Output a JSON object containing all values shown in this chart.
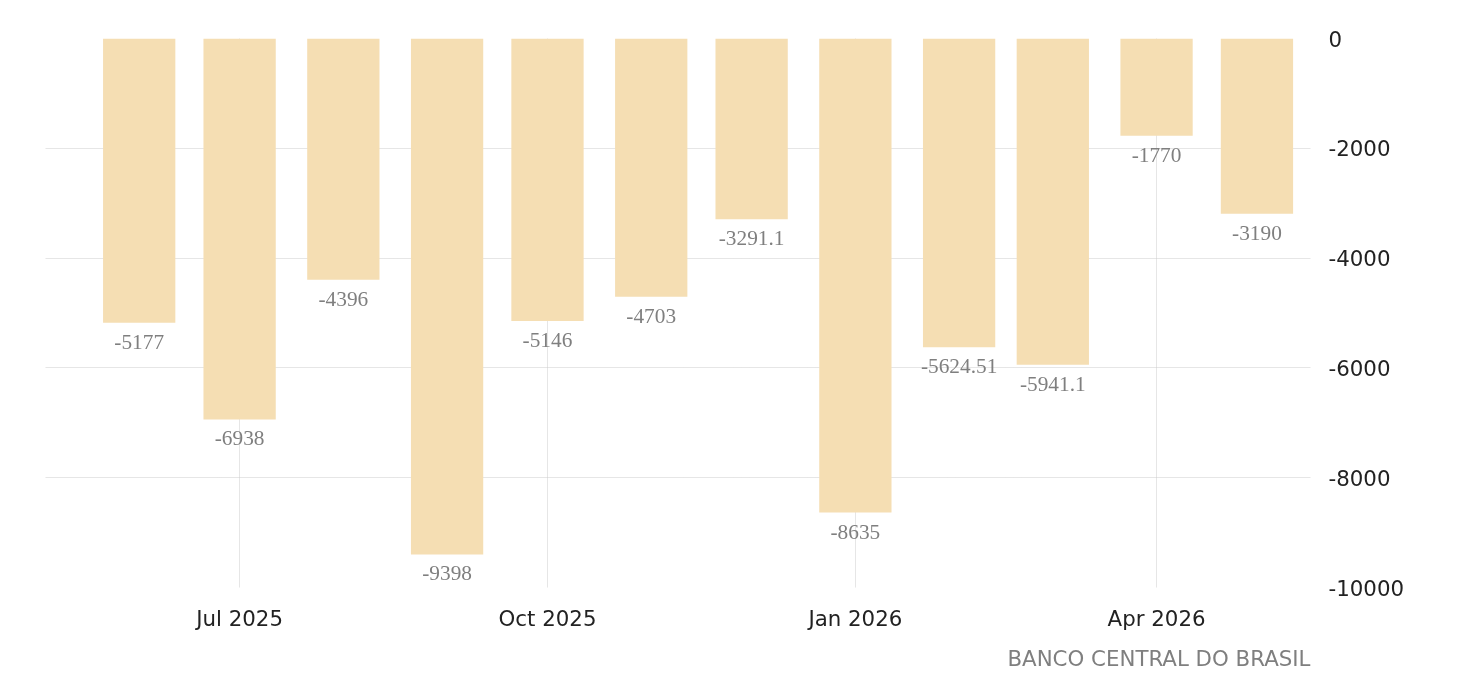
{
  "chart_data": {
    "type": "bar",
    "x": [
      "2025-06",
      "2025-07",
      "2025-08",
      "2025-09",
      "2025-10",
      "2025-11",
      "2025-12",
      "2026-01",
      "2026-02",
      "2026-03",
      "2026-04",
      "2026-05"
    ],
    "values": [
      -5177,
      -6938,
      -4396,
      -9398,
      -5146,
      -4703,
      -3291.1,
      -8635,
      -5624.51,
      -5941.1,
      -1770,
      -3190
    ],
    "color": "#f5deb3",
    "data_labels": true,
    "xlim": [
      "2025-05-04",
      "2026-05-17"
    ],
    "xticks": [
      {
        "value": "2025-07",
        "label": "Jul 2025"
      },
      {
        "value": "2025-10",
        "label": "Oct 2025"
      },
      {
        "value": "2026-01",
        "label": "Jan 2026"
      },
      {
        "value": "2026-04",
        "label": "Apr 2026"
      }
    ],
    "ylim": [
      -10000,
      0
    ],
    "yticks": [
      0,
      -2000,
      -4000,
      -6000,
      -8000,
      -10000
    ],
    "grid": true,
    "annotations": [
      "BANCO CENTRAL DO BRASIL"
    ]
  }
}
